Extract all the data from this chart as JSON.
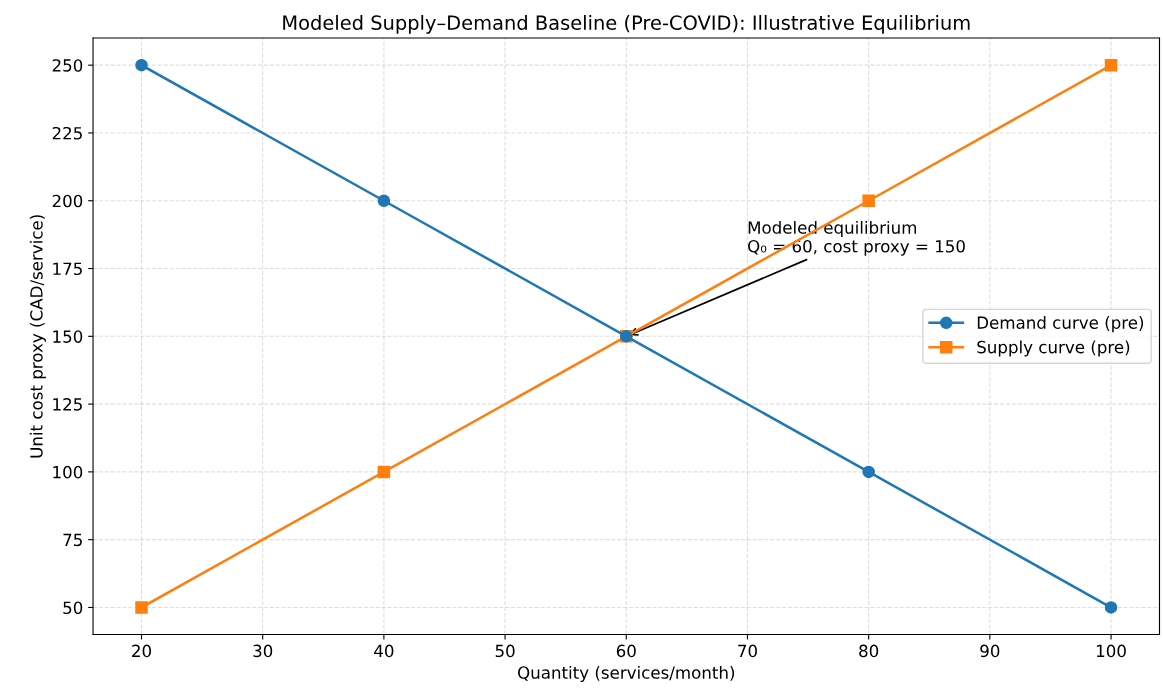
{
  "chart_data": {
    "type": "line",
    "title": "Modeled Supply–Demand Baseline (Pre-COVID): Illustrative Equilibrium",
    "xlabel": "Quantity (services/month)",
    "ylabel": "Unit cost proxy (CAD/service)",
    "x": [
      20,
      40,
      60,
      80,
      100
    ],
    "series": [
      {
        "name": "Demand curve (pre)",
        "color": "#1f77b4",
        "marker": "circle",
        "values": [
          250,
          200,
          150,
          100,
          50
        ]
      },
      {
        "name": "Supply curve (pre)",
        "color": "#ff7f0e",
        "marker": "square",
        "values": [
          50,
          100,
          150,
          200,
          250
        ]
      }
    ],
    "annotations": [
      {
        "text": "Modeled equilibrium\nQ₀ = 60, cost proxy = 150",
        "x": 60,
        "y": 150
      }
    ],
    "xlim": [
      16,
      104
    ],
    "ylim": [
      40,
      260
    ],
    "xticks": [
      20,
      30,
      40,
      50,
      60,
      70,
      80,
      90,
      100
    ],
    "yticks": [
      50,
      75,
      100,
      125,
      150,
      175,
      200,
      225,
      250
    ],
    "grid": true,
    "legend": "center right",
    "line_style": "solid"
  }
}
